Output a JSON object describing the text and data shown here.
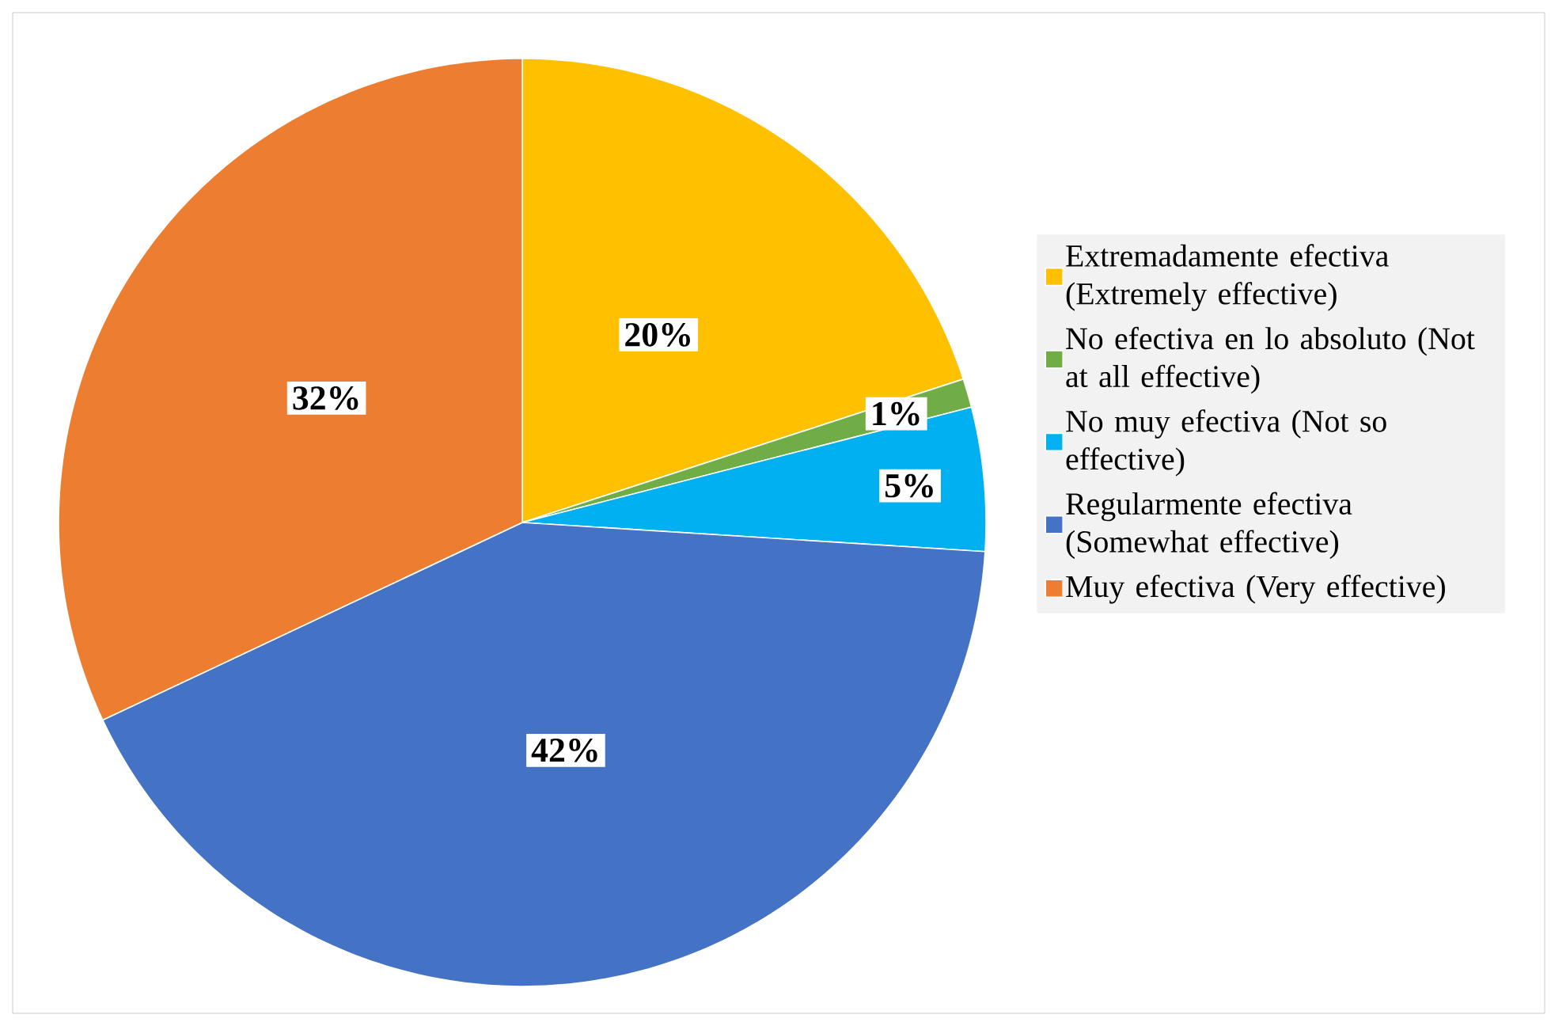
{
  "chart_data": {
    "type": "pie",
    "categories": [
      "Extremadamente efectiva (Extremely effective)",
      "No efectiva en lo absoluto (Not at all effective)",
      "No muy efectiva (Not so effective)",
      "Regularmente efectiva (Somewhat effective)",
      "Muy efectiva (Very effective)"
    ],
    "values": [
      20,
      1,
      5,
      42,
      32
    ],
    "colors": [
      "#ffc000",
      "#70ad47",
      "#00b0f0",
      "#4472c4",
      "#ed7d31"
    ],
    "value_labels": [
      "20%",
      "1%",
      "5%",
      "42%",
      "32%"
    ],
    "legend": "right"
  }
}
